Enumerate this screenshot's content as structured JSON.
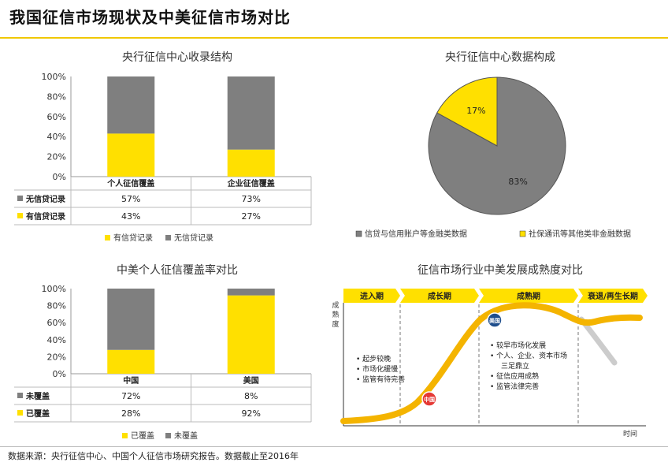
{
  "page_title": "我国征信市场现状及中美征信市场对比",
  "source": "数据来源：央行征信中心、中国个人征信市场研究报告。数据截止至2016年",
  "colors": {
    "gray": "#7f7f7f",
    "yellow": "#ffe000",
    "accent": "#f0c800",
    "orange": "#f4b400"
  },
  "chart_data": [
    {
      "type": "bar",
      "stacked": true,
      "title": "央行征信中心收录结构",
      "categories": [
        "个人征信覆盖",
        "企业征信覆盖"
      ],
      "series": [
        {
          "name": "无信贷记录",
          "values": [
            57,
            73
          ],
          "labels": [
            "57%",
            "73%"
          ],
          "color": "#7f7f7f"
        },
        {
          "name": "有信贷记录",
          "values": [
            43,
            27
          ],
          "labels": [
            "43%",
            "27%"
          ],
          "color": "#ffe000"
        }
      ],
      "yticks": [
        "0%",
        "20%",
        "40%",
        "60%",
        "80%",
        "100%"
      ],
      "ylim": [
        0,
        100
      ],
      "legend": [
        "有信贷记录",
        "无信贷记录"
      ],
      "legend_position": "bottom"
    },
    {
      "type": "pie",
      "title": "央行征信中心数据构成",
      "slices": [
        {
          "name": "信贷与信用账户等金融类数据",
          "value": 83,
          "label": "83%",
          "color": "#7f7f7f"
        },
        {
          "name": "社保通讯等其他类非金融数据",
          "value": 17,
          "label": "17%",
          "color": "#ffe000"
        }
      ],
      "legend_position": "bottom"
    },
    {
      "type": "bar",
      "stacked": true,
      "title": "中美个人征信覆盖率对比",
      "categories": [
        "中国",
        "美国"
      ],
      "series": [
        {
          "name": "未覆盖",
          "values": [
            72,
            8
          ],
          "labels": [
            "72%",
            "8%"
          ],
          "color": "#7f7f7f"
        },
        {
          "name": "已覆盖",
          "values": [
            28,
            92
          ],
          "labels": [
            "28%",
            "92%"
          ],
          "color": "#ffe000"
        }
      ],
      "yticks": [
        "0%",
        "20%",
        "40%",
        "60%",
        "80%",
        "100%"
      ],
      "ylim": [
        0,
        100
      ],
      "legend": [
        "已覆盖",
        "未覆盖"
      ],
      "legend_position": "bottom"
    },
    {
      "type": "diagram",
      "title": "征信市场行业中美发展成熟度对比",
      "ylabel": "成熟度",
      "xlabel": "时间",
      "stages": [
        "进入期",
        "成长期",
        "成熟期",
        "衰退/再生长期"
      ],
      "markers": [
        {
          "name": "中国"
        },
        {
          "name": "美国"
        }
      ],
      "china_notes": [
        "起步较晚",
        "市场化缓慢",
        "监管有待完善"
      ],
      "usa_notes": [
        "较早市场化发展",
        "个人、企业、资本市场三足鼎立",
        "征信应用成熟",
        "监管法律完善"
      ]
    }
  ]
}
